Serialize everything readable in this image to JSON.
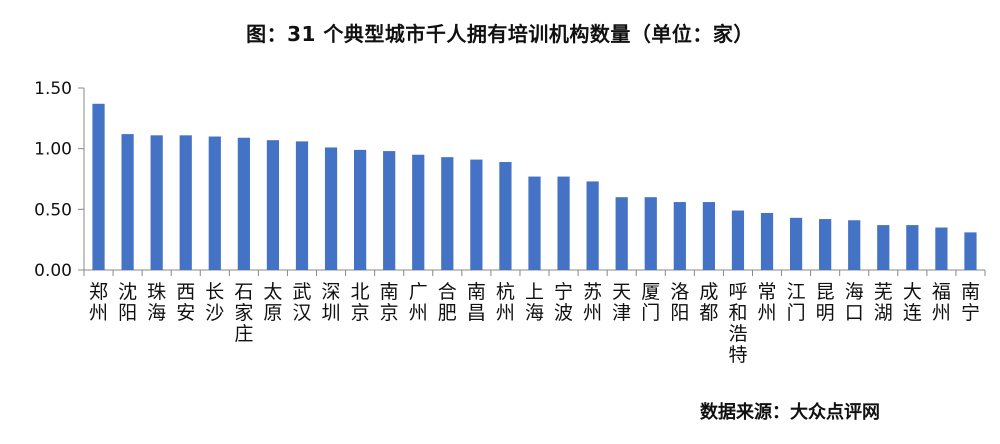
{
  "chart_data": {
    "type": "bar",
    "title": "图：31 个典型城市千人拥有培训机构数量（单位：家）",
    "source": "数据来源：大众点评网",
    "categories": [
      "郑州",
      "沈阳",
      "珠海",
      "西安",
      "长沙",
      "石家庄",
      "太原",
      "武汉",
      "深圳",
      "北京",
      "南京",
      "广州",
      "合肥",
      "南昌",
      "杭州",
      "上海",
      "宁波",
      "苏州",
      "天津",
      "厦门",
      "洛阳",
      "成都",
      "呼和浩特",
      "常州",
      "江门",
      "昆明",
      "海口",
      "芜湖",
      "大连",
      "福州",
      "南宁"
    ],
    "values": [
      1.37,
      1.12,
      1.11,
      1.11,
      1.1,
      1.09,
      1.07,
      1.06,
      1.01,
      0.99,
      0.98,
      0.95,
      0.93,
      0.91,
      0.89,
      0.77,
      0.77,
      0.73,
      0.6,
      0.6,
      0.56,
      0.56,
      0.49,
      0.47,
      0.43,
      0.42,
      0.41,
      0.37,
      0.37,
      0.35,
      0.31
    ],
    "yticks": [
      "0.00",
      "0.50",
      "1.00",
      "1.50"
    ],
    "ylim": [
      0,
      1.5
    ],
    "bar_color": "#4472C4",
    "grid": false,
    "legend": "none"
  }
}
